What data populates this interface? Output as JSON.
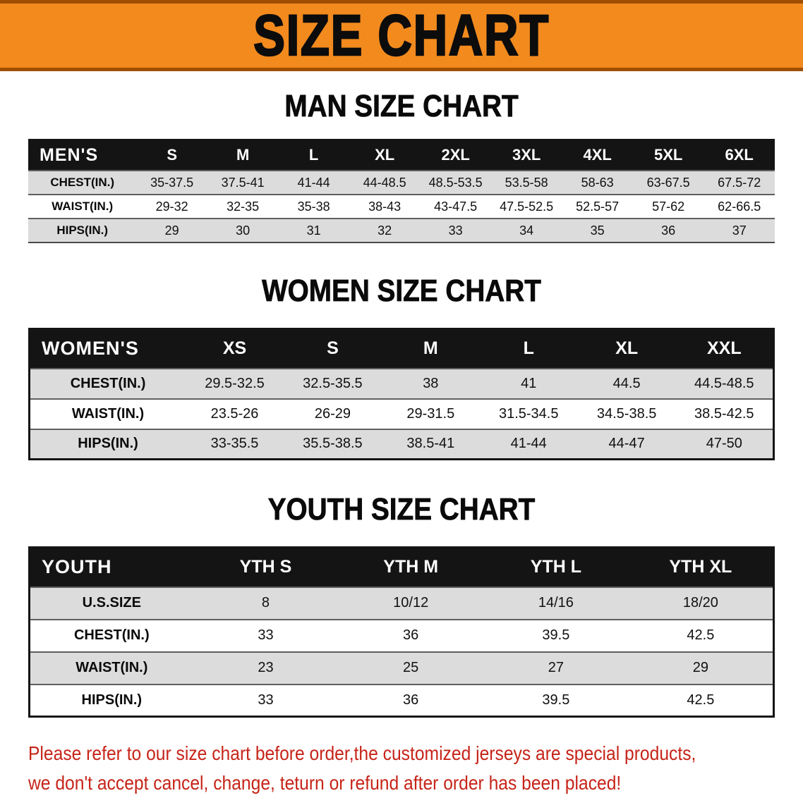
{
  "banner": {
    "title": "SIZE CHART"
  },
  "colors": {
    "banner_bg": "#F28A1E",
    "banner_edge": "#A04F00",
    "header_bg": "#141414",
    "header_text": "#FFFFFF",
    "row_shade": "#DCDCDC",
    "disclaimer_red": "#C62418"
  },
  "sections": [
    {
      "id": "men",
      "heading": "MAN SIZE CHART",
      "table": {
        "header": [
          "MEN'S",
          "S",
          "M",
          "L",
          "XL",
          "2XL",
          "3XL",
          "4XL",
          "5XL",
          "6XL"
        ],
        "rows": [
          [
            "CHEST(IN.)",
            "35-37.5",
            "37.5-41",
            "41-44",
            "44-48.5",
            "48.5-53.5",
            "53.5-58",
            "58-63",
            "63-67.5",
            "67.5-72"
          ],
          [
            "WAIST(IN.)",
            "29-32",
            "32-35",
            "35-38",
            "38-43",
            "43-47.5",
            "47.5-52.5",
            "52.5-57",
            "57-62",
            "62-66.5"
          ],
          [
            "HIPS(IN.)",
            "29",
            "30",
            "31",
            "32",
            "33",
            "34",
            "35",
            "36",
            "37"
          ]
        ]
      }
    },
    {
      "id": "women",
      "heading": "WOMEN SIZE CHART",
      "table": {
        "header": [
          "WOMEN'S",
          "XS",
          "S",
          "M",
          "L",
          "XL",
          "XXL"
        ],
        "rows": [
          [
            "CHEST(IN.)",
            "29.5-32.5",
            "32.5-35.5",
            "38",
            "41",
            "44.5",
            "44.5-48.5"
          ],
          [
            "WAIST(IN.)",
            "23.5-26",
            "26-29",
            "29-31.5",
            "31.5-34.5",
            "34.5-38.5",
            "38.5-42.5"
          ],
          [
            "HIPS(IN.)",
            "33-35.5",
            "35.5-38.5",
            "38.5-41",
            "41-44",
            "44-47",
            "47-50"
          ]
        ]
      }
    },
    {
      "id": "youth",
      "heading": "YOUTH SIZE CHART",
      "table": {
        "header": [
          "YOUTH",
          "YTH S",
          "YTH M",
          "YTH L",
          "YTH XL"
        ],
        "rows": [
          [
            "U.S.SIZE",
            "8",
            "10/12",
            "14/16",
            "18/20"
          ],
          [
            "CHEST(IN.)",
            "33",
            "36",
            "39.5",
            "42.5"
          ],
          [
            "WAIST(IN.)",
            "23",
            "25",
            "27",
            "29"
          ],
          [
            "HIPS(IN.)",
            "33",
            "36",
            "39.5",
            "42.5"
          ]
        ]
      }
    }
  ],
  "disclaimer": {
    "line1": "Please refer to our size chart before order,the customized jerseys are special products,",
    "line2": "we don't accept cancel, change, teturn or refund after order has been placed!"
  }
}
